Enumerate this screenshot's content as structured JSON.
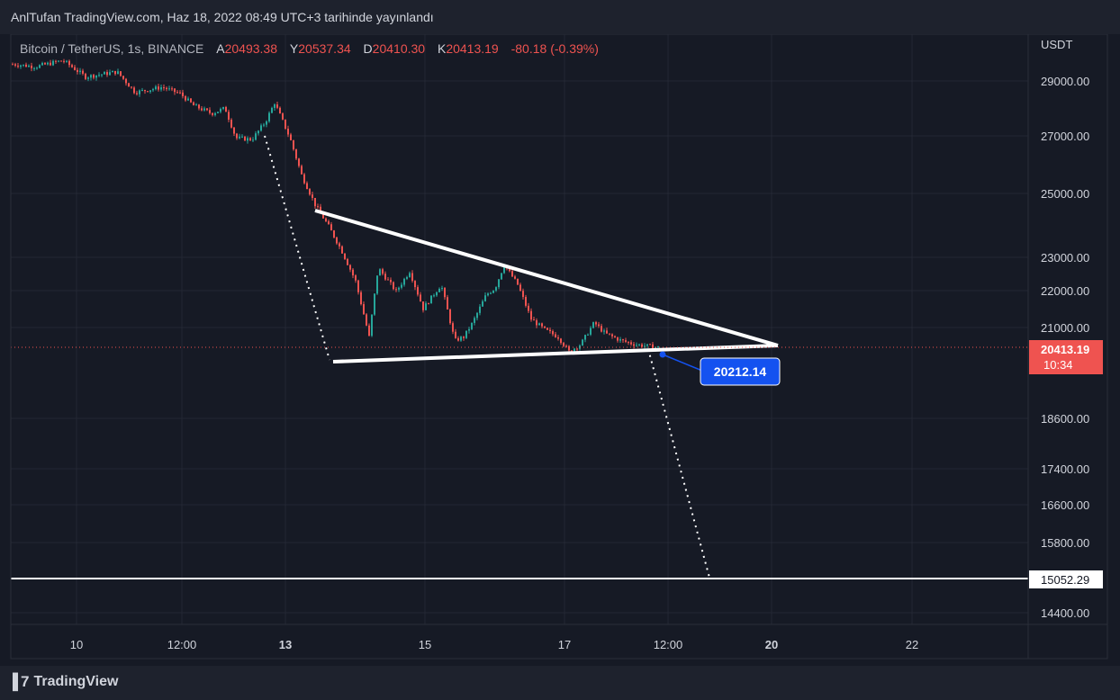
{
  "header": {
    "text": "AnlTufan TradingView.com, Haz 18, 2022 08:49 UTC+3 tarihinde yayınlandı"
  },
  "legend": {
    "symbol": "Bitcoin / TetherUS, 1s, BINANCE",
    "open_label": "A",
    "open": "20493.38",
    "high_label": "Y",
    "high": "20537.34",
    "low_label": "D",
    "low": "20410.30",
    "close_label": "K",
    "close": "20413.19",
    "change": "-80.18 (-0.39%)"
  },
  "price_axis": {
    "currency": "USDT",
    "ticks": [
      "29000.00",
      "27000.00",
      "25000.00",
      "23000.00",
      "22000.00",
      "21000.00",
      "18600.00",
      "17400.00",
      "16600.00",
      "15800.00",
      "14400.00"
    ],
    "last_price": "20413.19",
    "countdown": "10:34",
    "hline_label": "15052.29"
  },
  "time_axis": {
    "ticks": [
      "10",
      "12:00",
      "13",
      "15",
      "17",
      "12:00",
      "20",
      "22"
    ]
  },
  "annotation": {
    "price_label": "20212.14"
  },
  "footer": {
    "brand": "TradingView"
  },
  "colors": {
    "background": "#161a25",
    "up": "#26a69a",
    "down": "#ef5350",
    "drawing": "#ffffff",
    "badge": "#1452f0"
  },
  "chart_data": {
    "type": "candlestick",
    "symbol": "Bitcoin / TetherUS",
    "interval": "1h",
    "exchange": "BINANCE",
    "y_scale": "log",
    "ylim": [
      14000,
      30500
    ],
    "x": [
      "10",
      "12:00",
      "13",
      "15",
      "17",
      "12:00",
      "20",
      "22"
    ],
    "price_path": [
      [
        "10 (start)",
        29900
      ],
      [
        "11",
        29100
      ],
      [
        "12",
        28700
      ],
      [
        "12:00",
        28600
      ],
      [
        "12 (late)",
        26900
      ],
      [
        "13",
        28200
      ],
      [
        "13 (mid)",
        24600
      ],
      [
        "14",
        21000
      ],
      [
        "14",
        22700
      ],
      [
        "15",
        22300
      ],
      [
        "15 (late)",
        20300
      ],
      [
        "16",
        22900
      ],
      [
        "16 (late)",
        21000
      ],
      [
        "17",
        20300
      ],
      [
        "17 (mid)",
        21000
      ],
      [
        "18",
        20413.19
      ]
    ],
    "drawings": {
      "triangle_upper_line": "descending resistance from ~24500 to apex ~20450",
      "triangle_lower_line": "support from ~19950 to apex ~20450",
      "projection": "dotted measured move down to 15052.29",
      "horizontal_level": 15052.29,
      "price_label": 20212.14
    },
    "last_price": 20413.19
  }
}
